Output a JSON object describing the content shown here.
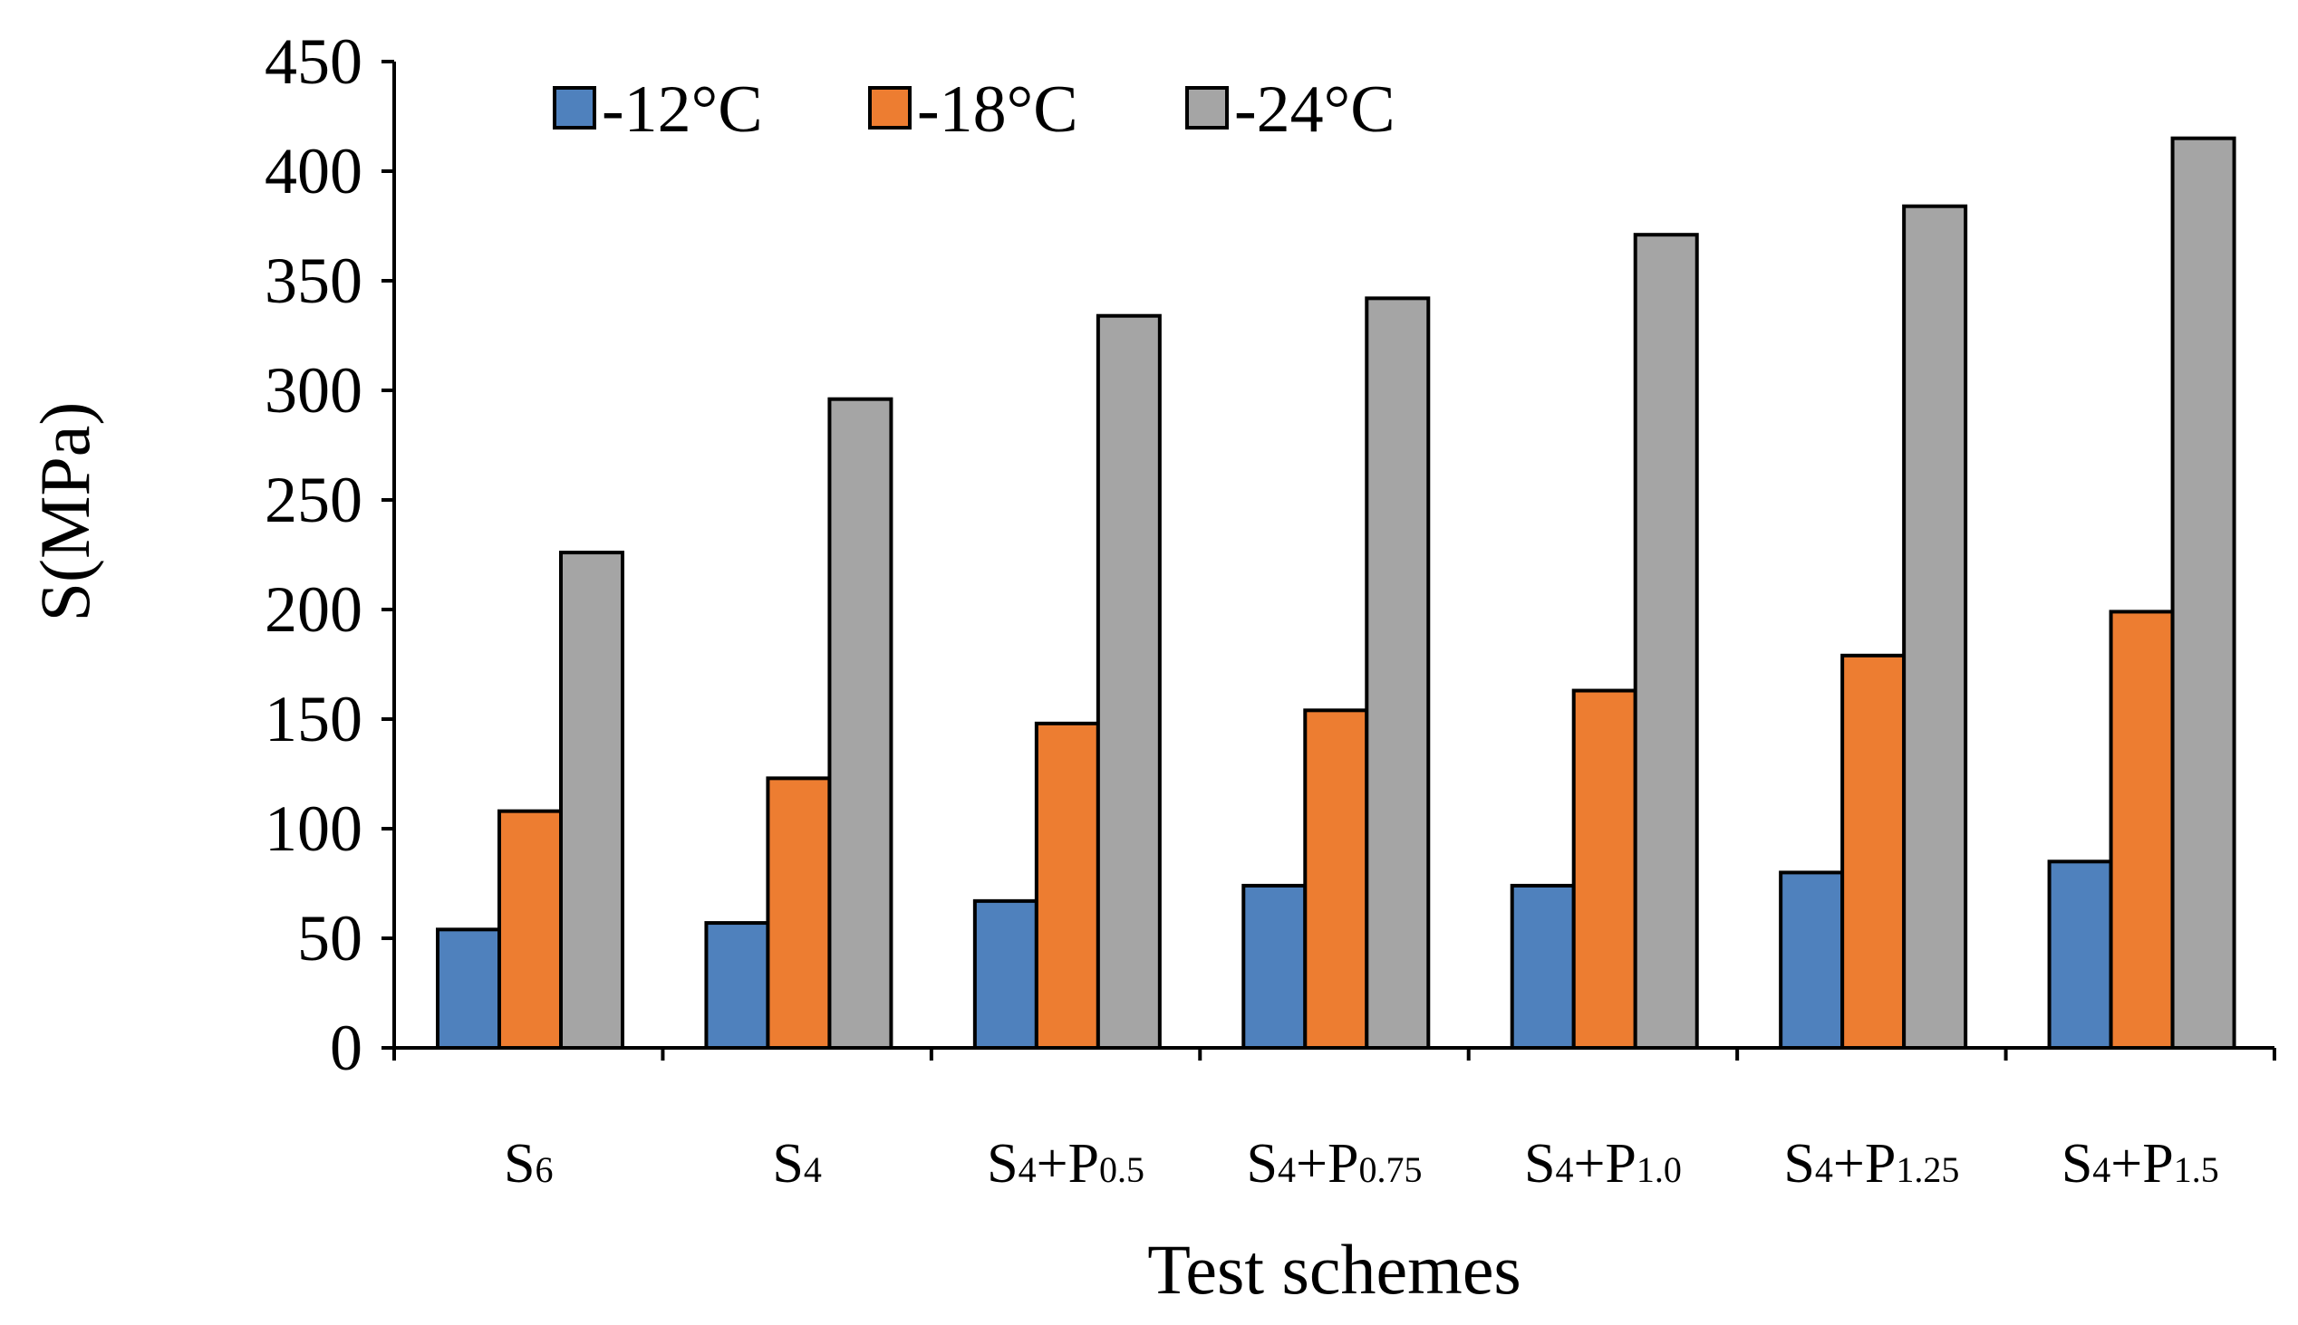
{
  "chart_data": {
    "type": "bar",
    "title": "",
    "xlabel": "Test schemes",
    "ylabel": "S(MPa)",
    "ylim": [
      0,
      450
    ],
    "yticks": [
      0,
      50,
      100,
      150,
      200,
      250,
      300,
      350,
      400,
      450
    ],
    "grid": false,
    "legend_position": "top-left",
    "categories": [
      {
        "base": "S",
        "sub": "6"
      },
      {
        "base": "S",
        "sub": "4"
      },
      {
        "base": "S",
        "sub": "4",
        "mid": "+P",
        "sub2": "0.5"
      },
      {
        "base": "S",
        "sub": "4",
        "mid": "+P",
        "sub2": "0.75"
      },
      {
        "base": "S",
        "sub": "4",
        "mid": "+P",
        "sub2": "1.0"
      },
      {
        "base": "S",
        "sub": "4",
        "mid": "+P",
        "sub2": "1.25"
      },
      {
        "base": "S",
        "sub": "4",
        "mid": "+P",
        "sub2": "1.5"
      }
    ],
    "series": [
      {
        "name": "-12°C",
        "color": "#4f81bd",
        "values": [
          54,
          57,
          67,
          74,
          74,
          80,
          85
        ]
      },
      {
        "name": "-18°C",
        "color": "#ed7d31",
        "values": [
          108,
          123,
          148,
          154,
          163,
          179,
          199
        ]
      },
      {
        "name": "-24°C",
        "color": "#a5a5a5",
        "values": [
          226,
          296,
          334,
          342,
          371,
          384,
          415
        ]
      }
    ]
  }
}
